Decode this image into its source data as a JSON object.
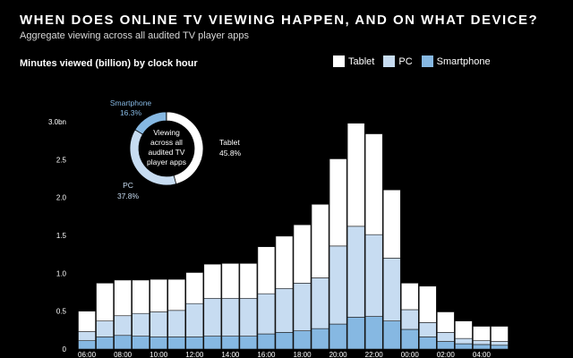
{
  "title": "WHEN DOES ONLINE TV VIEWING HAPPEN, AND ON WHAT DEVICE?",
  "subtitle": "Aggregate viewing across all audited TV player apps",
  "colors": {
    "tablet": "#ffffff",
    "pc": "#c7dcf1",
    "smartphone": "#86b8e2",
    "background": "#000000",
    "bar_stroke": "#1a1a1a"
  },
  "legend": [
    {
      "key": "tablet",
      "label": "Tablet"
    },
    {
      "key": "pc",
      "label": "PC"
    },
    {
      "key": "smartphone",
      "label": "Smartphone"
    }
  ],
  "donut": {
    "center_label": [
      "Viewing",
      "across all",
      "audited TV",
      "player apps"
    ],
    "slices": [
      {
        "name": "Tablet",
        "value": "45.8%",
        "pct": 45.8
      },
      {
        "name": "PC",
        "value": "37.8%",
        "pct": 37.8
      },
      {
        "name": "Smartphone",
        "value": "16.3%",
        "pct": 16.3
      }
    ]
  },
  "chart_data": {
    "type": "bar",
    "stacked": true,
    "title": "WHEN DOES ONLINE TV VIEWING HAPPEN, AND ON WHAT DEVICE?",
    "ylabel": "Minutes viewed (billion) by clock hour",
    "ylim": [
      0,
      3.0
    ],
    "yticks": [
      0,
      0.5,
      1.0,
      1.5,
      2.0,
      2.5,
      3.0
    ],
    "ytick_labels": [
      "0",
      "0.5",
      "1.0",
      "1.5",
      "2.0",
      "2.5",
      "3.0bn"
    ],
    "categories": [
      "06:00",
      "07:00",
      "08:00",
      "09:00",
      "10:00",
      "11:00",
      "12:00",
      "13:00",
      "14:00",
      "15:00",
      "16:00",
      "17:00",
      "18:00",
      "19:00",
      "20:00",
      "21:00",
      "22:00",
      "23:00",
      "00:00",
      "01:00",
      "02:00",
      "03:00",
      "04:00",
      "05:00"
    ],
    "xtick_labels": [
      "06:00",
      "",
      "08:00",
      "",
      "10:00",
      "",
      "12:00",
      "",
      "14:00",
      "",
      "16:00",
      "",
      "18:00",
      "",
      "20:00",
      "",
      "22:00",
      "",
      "00:00",
      "",
      "02:00",
      "",
      "04:00",
      ""
    ],
    "series": [
      {
        "name": "Smartphone",
        "values": [
          0.11,
          0.16,
          0.18,
          0.17,
          0.16,
          0.16,
          0.16,
          0.17,
          0.17,
          0.17,
          0.2,
          0.22,
          0.24,
          0.27,
          0.33,
          0.42,
          0.43,
          0.37,
          0.26,
          0.16,
          0.1,
          0.07,
          0.06,
          0.05
        ]
      },
      {
        "name": "PC",
        "values": [
          0.12,
          0.21,
          0.26,
          0.3,
          0.33,
          0.35,
          0.44,
          0.5,
          0.5,
          0.5,
          0.53,
          0.58,
          0.63,
          0.67,
          1.03,
          1.2,
          1.08,
          0.83,
          0.26,
          0.19,
          0.12,
          0.07,
          0.05,
          0.05
        ]
      },
      {
        "name": "Tablet",
        "values": [
          0.27,
          0.5,
          0.47,
          0.44,
          0.43,
          0.41,
          0.41,
          0.45,
          0.46,
          0.46,
          0.62,
          0.69,
          0.77,
          0.97,
          1.15,
          1.36,
          1.33,
          0.9,
          0.35,
          0.48,
          0.27,
          0.23,
          0.19,
          0.2
        ]
      }
    ]
  }
}
